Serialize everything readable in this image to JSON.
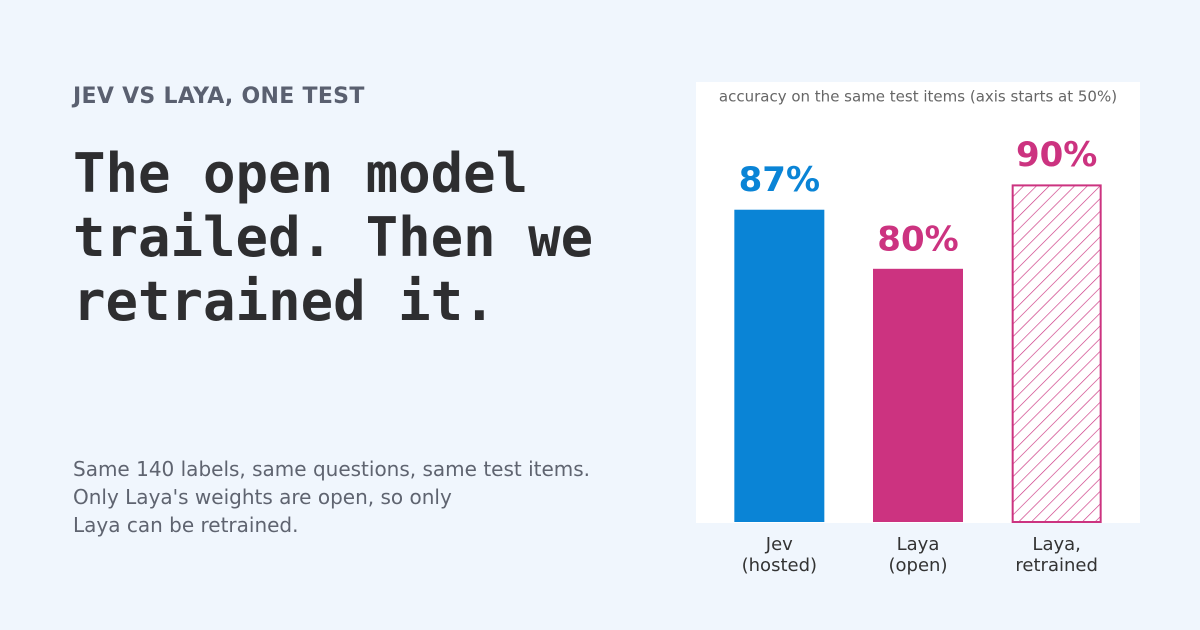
{
  "header": {
    "eyebrow": "JEV VS LAYA, ONE TEST",
    "title": "The open model trailed. Then we retrained it."
  },
  "body": {
    "lines": [
      "Same 140 labels, same questions, same test items.",
      "Only Laya's weights are open, so only",
      "Laya can be retrained."
    ]
  },
  "chart_data": {
    "type": "bar",
    "subtitle": "accuracy on the same test items (axis starts at 50%)",
    "categories": [
      "Jev\n(hosted)",
      "Laya\n(open)",
      "Laya,\nretrained"
    ],
    "values": [
      87,
      80,
      90
    ],
    "value_labels": [
      "87%",
      "80%",
      "90%"
    ],
    "colors": [
      "#0a84d6",
      "#cc3380",
      "#cc3380"
    ],
    "hatched": [
      false,
      false,
      true
    ],
    "ylim": [
      50,
      100
    ]
  }
}
